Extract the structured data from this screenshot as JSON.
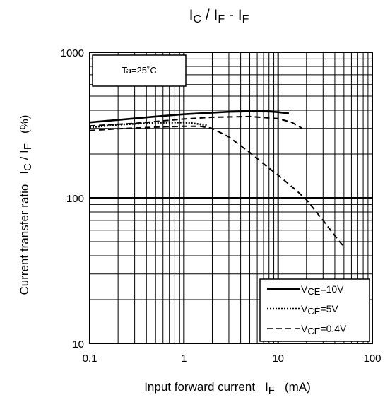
{
  "chart_data": {
    "type": "line",
    "title": "IC / IF - IF",
    "title_parts": {
      "main1": "I",
      "sub1": "C",
      "slash": " / ",
      "main2": "I",
      "sub2": "F",
      "dash": "  - ",
      "main3": "I",
      "sub3": "F"
    },
    "xlabel": "Input forward current",
    "xlabel_symbol": "I",
    "xlabel_sub": "F",
    "xlabel_unit": "(mA)",
    "ylabel": "Current transfer ratio",
    "ylabel_symbol": "I",
    "ylabel_sub1": "C",
    "ylabel_slash": " / I",
    "ylabel_sub2": "F",
    "ylabel_unit": "(%)",
    "x_scale": "log",
    "y_scale": "log",
    "xlim": [
      0.1,
      100
    ],
    "ylim": [
      10,
      1000
    ],
    "x_ticks": [
      {
        "value": 0.1,
        "label": "0.1"
      },
      {
        "value": 1,
        "label": "1"
      },
      {
        "value": 10,
        "label": "10"
      },
      {
        "value": 100,
        "label": "100"
      }
    ],
    "y_ticks": [
      {
        "value": 10,
        "label": "10"
      },
      {
        "value": 100,
        "label": "100"
      },
      {
        "value": 1000,
        "label": "1000"
      }
    ],
    "grid": true,
    "condition": "Ta=25˚C",
    "legend_position": "bottom-right",
    "series": [
      {
        "name": "VCE=10V",
        "label_main": "V",
        "label_sub": "CE",
        "label_rest": "=10V",
        "style": "solid",
        "points": [
          [
            0.1,
            330
          ],
          [
            0.2,
            343
          ],
          [
            0.5,
            362
          ],
          [
            1,
            375
          ],
          [
            2,
            385
          ],
          [
            3,
            390
          ],
          [
            5,
            393
          ],
          [
            8,
            392
          ],
          [
            10,
            388
          ],
          [
            13,
            380
          ]
        ]
      },
      {
        "name": "VCE=5V",
        "label_main": "V",
        "label_sub": "CE",
        "label_rest": "=5V",
        "style": "dotted",
        "points": [
          [
            0.1,
            305
          ],
          [
            0.2,
            318
          ],
          [
            0.5,
            328
          ],
          [
            1,
            330
          ],
          [
            1.2,
            326
          ],
          [
            1.5,
            320
          ],
          [
            1.8,
            314
          ]
        ]
      },
      {
        "name": "VCE=0.4V",
        "label_main": "V",
        "label_sub": "CE",
        "label_rest": "=0.4V",
        "style": "dashed",
        "points": [
          [
            0.1,
            290
          ],
          [
            0.2,
            298
          ],
          [
            0.5,
            306
          ],
          [
            1,
            310
          ],
          [
            1.5,
            310
          ],
          [
            2,
            300
          ],
          [
            3,
            262
          ],
          [
            5,
            205
          ],
          [
            8,
            160
          ],
          [
            10,
            143
          ],
          [
            15,
            115
          ],
          [
            20,
            97
          ],
          [
            30,
            70
          ],
          [
            40,
            55
          ],
          [
            50,
            46
          ]
        ]
      },
      {
        "name": "VCE=0.4V (upper)",
        "style": "dashed",
        "label_hidden": true,
        "points": [
          [
            0.1,
            312
          ],
          [
            0.3,
            325
          ],
          [
            1,
            348
          ],
          [
            2,
            358
          ],
          [
            5,
            362
          ],
          [
            10,
            350
          ],
          [
            14,
            330
          ],
          [
            18,
            300
          ]
        ]
      }
    ]
  }
}
